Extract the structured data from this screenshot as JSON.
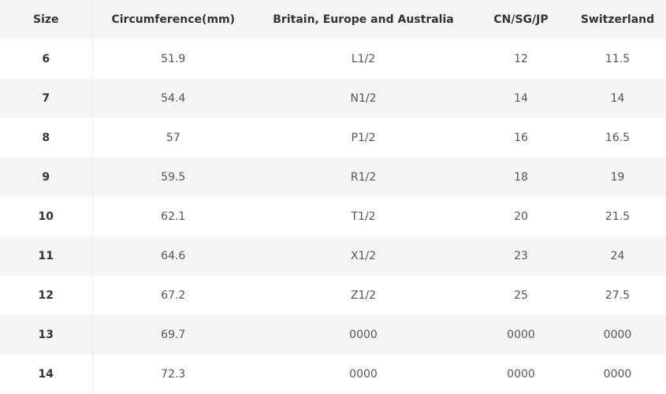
{
  "table": {
    "header": [
      "Size",
      "Circumference(mm)",
      "Britain, Europe and Australia",
      "CN/SG/JP",
      "Switzerland"
    ],
    "rows": [
      [
        "6",
        "51.9",
        "L1/2",
        "12",
        "11.5"
      ],
      [
        "7",
        "54.4",
        "N1/2",
        "14",
        "14"
      ],
      [
        "8",
        "57",
        "P1/2",
        "16",
        "16.5"
      ],
      [
        "9",
        "59.5",
        "R1/2",
        "18",
        "19"
      ],
      [
        "10",
        "62.1",
        "T1/2",
        "20",
        "21.5"
      ],
      [
        "11",
        "64.6",
        "X1/2",
        "23",
        "24"
      ],
      [
        "12",
        "67.2",
        "Z1/2",
        "25",
        "27.5"
      ],
      [
        "13",
        "69.7",
        "0000",
        "0000",
        "0000"
      ],
      [
        "14",
        "72.3",
        "0000",
        "0000",
        "0000"
      ]
    ]
  }
}
